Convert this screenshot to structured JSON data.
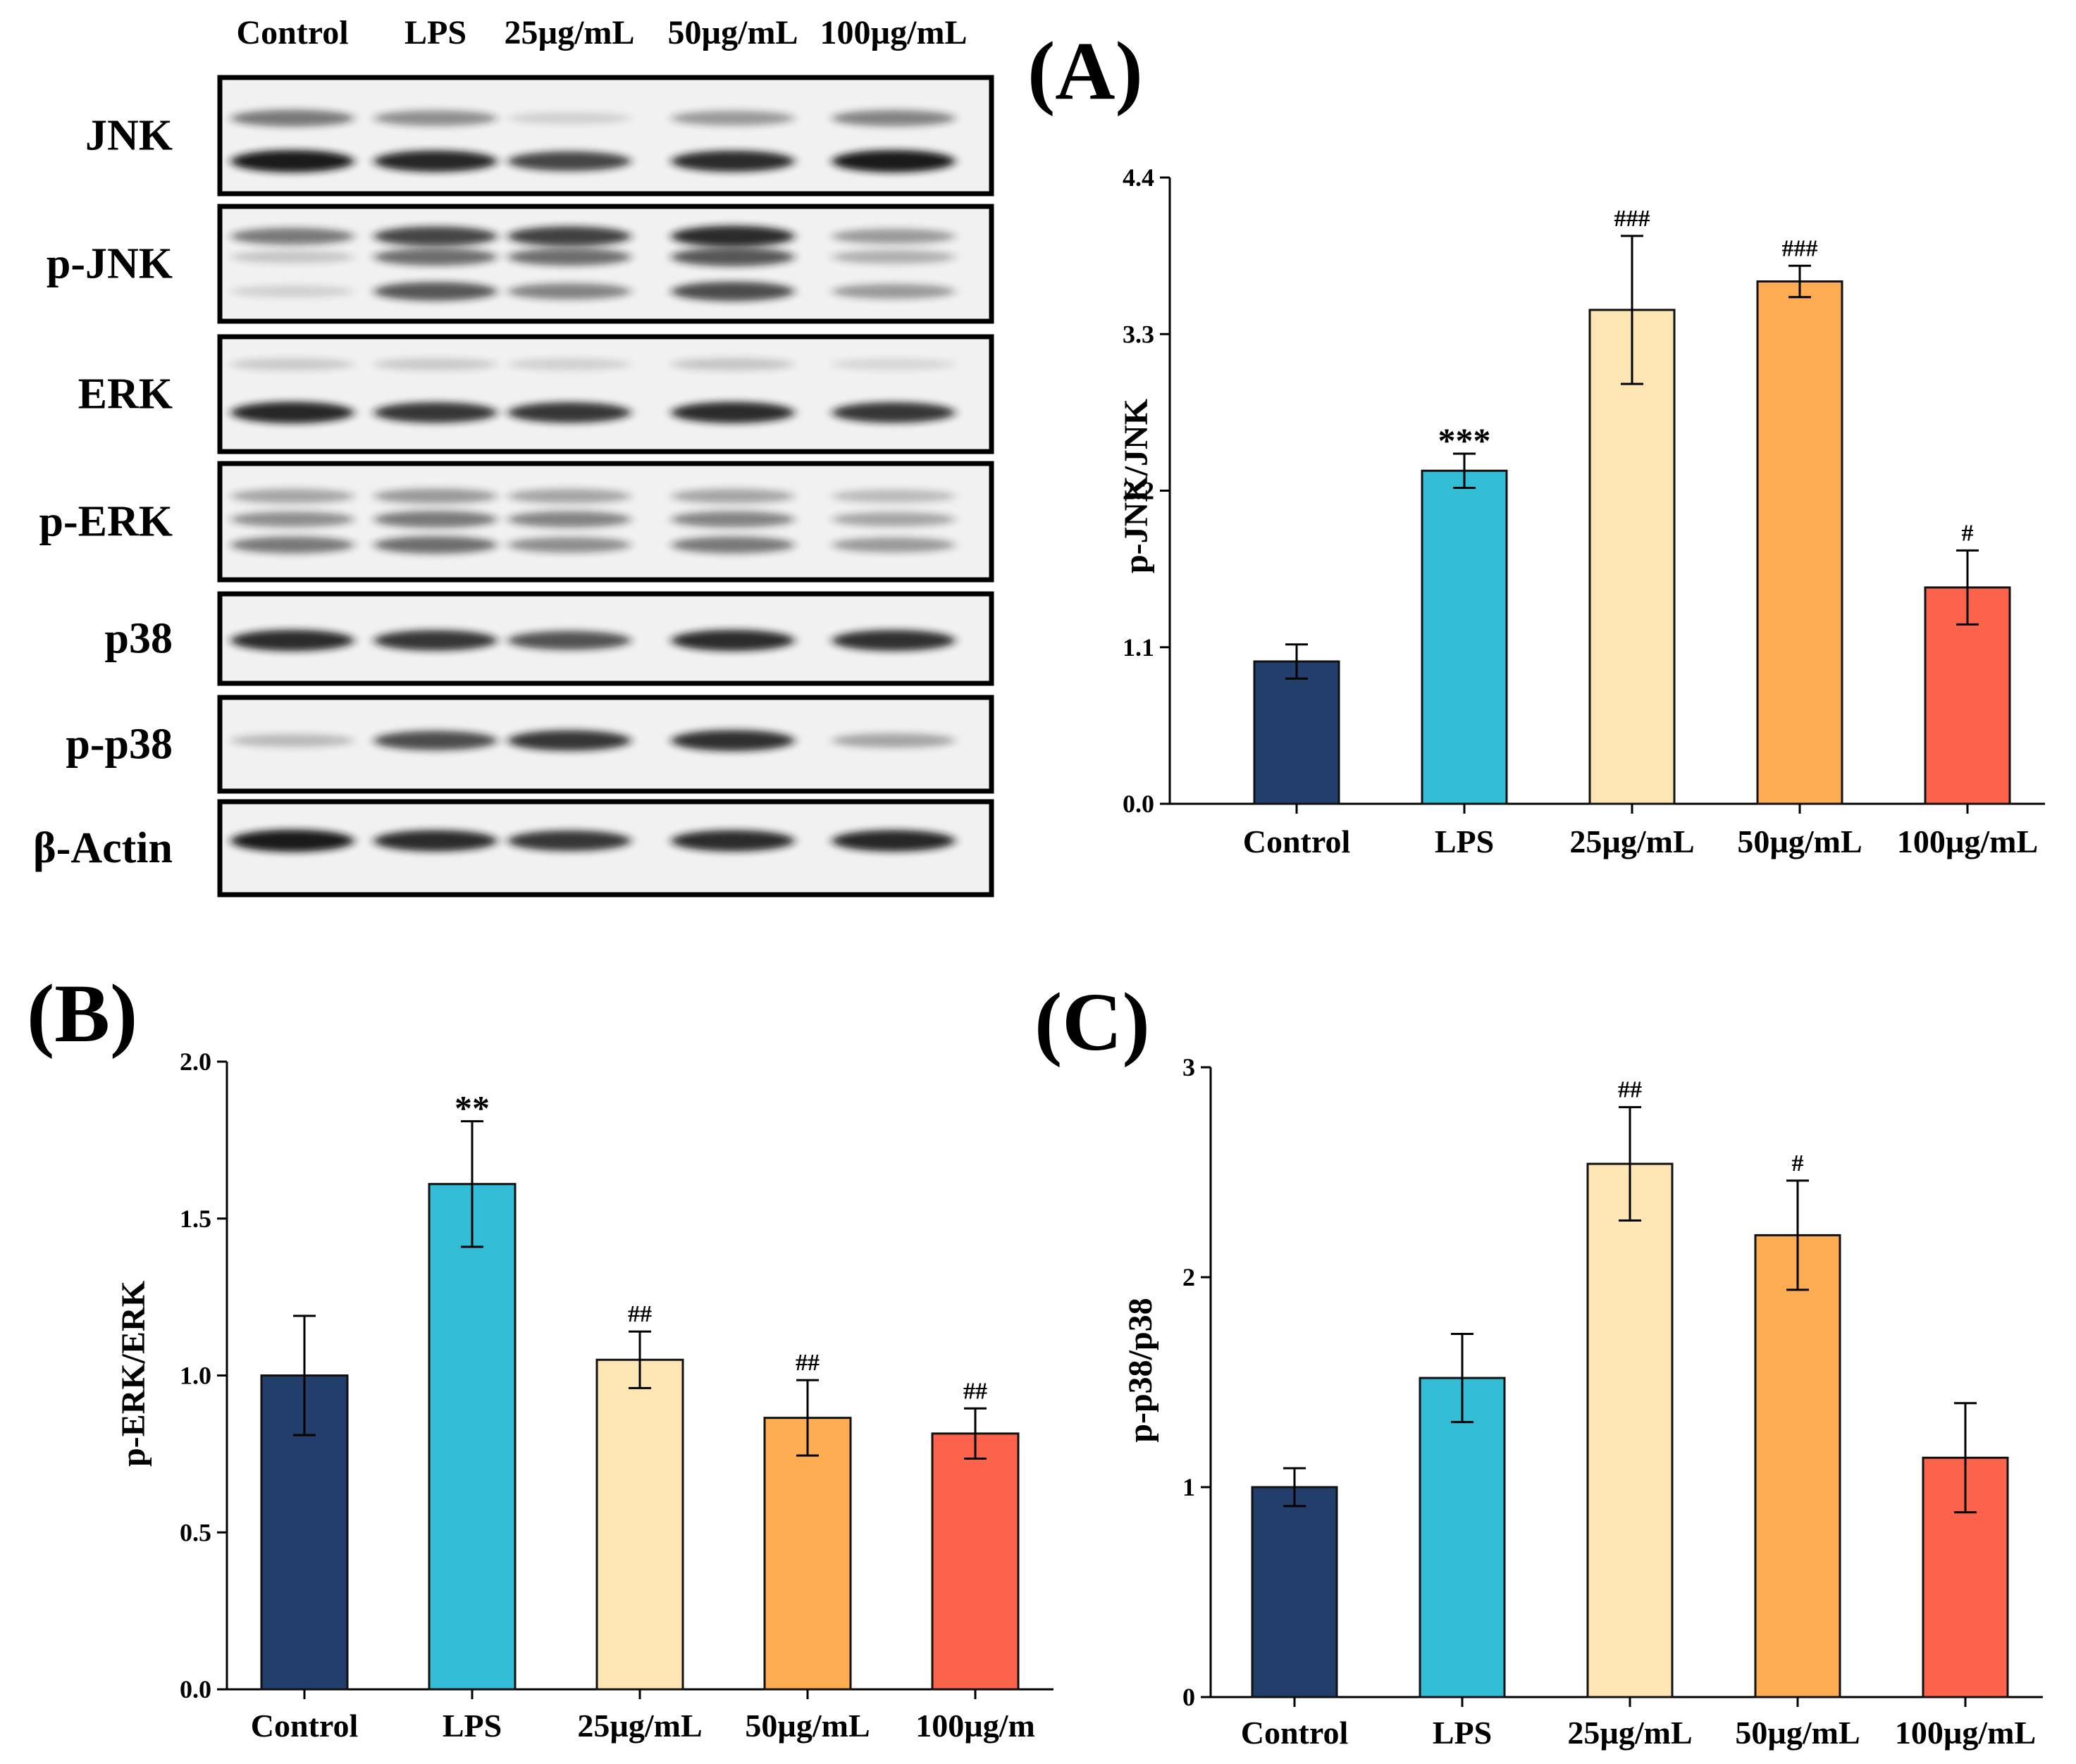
{
  "colors": {
    "bars": [
      "#223e6a",
      "#33bcd6",
      "#fde6b4",
      "#fdac52",
      "#fd634a"
    ],
    "bar_edge": "#111111",
    "blot_bg": "#f1f1f1",
    "blot_band": "#141414"
  },
  "blot": {
    "lane_labels": [
      "Control",
      "LPS",
      "25µg/mL",
      "50µg/mL",
      "100µg/mL"
    ],
    "rows": [
      {
        "label": "JNK",
        "bands": [
          {
            "pos": 0.35,
            "lanes": [
              0.55,
              0.45,
              0.15,
              0.4,
              0.5
            ]
          },
          {
            "pos": 0.72,
            "lanes": [
              0.98,
              0.92,
              0.78,
              0.9,
              0.98
            ]
          }
        ]
      },
      {
        "label": "p-JNK",
        "bands": [
          {
            "pos": 0.26,
            "lanes": [
              0.55,
              0.78,
              0.8,
              0.9,
              0.4
            ]
          },
          {
            "pos": 0.44,
            "lanes": [
              0.2,
              0.6,
              0.6,
              0.7,
              0.3
            ]
          },
          {
            "pos": 0.74,
            "lanes": [
              0.15,
              0.7,
              0.5,
              0.75,
              0.4
            ]
          }
        ]
      },
      {
        "label": "ERK",
        "bands": [
          {
            "pos": 0.24,
            "lanes": [
              0.18,
              0.18,
              0.15,
              0.2,
              0.12
            ]
          },
          {
            "pos": 0.66,
            "lanes": [
              0.92,
              0.85,
              0.85,
              0.9,
              0.85
            ]
          }
        ]
      },
      {
        "label": "p-ERK",
        "bands": [
          {
            "pos": 0.28,
            "lanes": [
              0.35,
              0.4,
              0.35,
              0.35,
              0.25
            ]
          },
          {
            "pos": 0.48,
            "lanes": [
              0.45,
              0.55,
              0.5,
              0.5,
              0.35
            ]
          },
          {
            "pos": 0.7,
            "lanes": [
              0.55,
              0.6,
              0.45,
              0.55,
              0.4
            ]
          }
        ]
      },
      {
        "label": "p38",
        "bands": [
          {
            "pos": 0.52,
            "lanes": [
              0.9,
              0.85,
              0.72,
              0.9,
              0.88
            ]
          }
        ]
      },
      {
        "label": "p-p38",
        "bands": [
          {
            "pos": 0.46,
            "lanes": [
              0.25,
              0.75,
              0.85,
              0.88,
              0.35
            ]
          }
        ]
      },
      {
        "label": "β-Actin",
        "bands": [
          {
            "pos": 0.42,
            "lanes": [
              0.98,
              0.9,
              0.85,
              0.9,
              0.92
            ]
          }
        ]
      }
    ]
  },
  "chart_data": [
    {
      "panel": "(A)",
      "type": "bar",
      "categories": [
        "Control",
        "LPS",
        "25µg/mL",
        "50µg/mL",
        "100µg/mL"
      ],
      "values": [
        1.0,
        2.34,
        3.47,
        3.67,
        1.52
      ],
      "errors": [
        0.12,
        0.12,
        0.52,
        0.11,
        0.26
      ],
      "annotations": [
        "",
        "***",
        "###",
        "###",
        "#"
      ],
      "ylabel": "p-JNK/JNK",
      "ylim": [
        0,
        4.4
      ],
      "yticks": [
        "0.0",
        "1.1",
        "2.2",
        "3.3",
        "4.4"
      ]
    },
    {
      "panel": "(B)",
      "type": "bar",
      "categories": [
        "Control",
        "LPS",
        "25µg/mL",
        "50µg/mL",
        "100µg/m"
      ],
      "values": [
        1.0,
        1.61,
        1.05,
        0.865,
        0.815
      ],
      "errors": [
        0.19,
        0.2,
        0.09,
        0.12,
        0.08
      ],
      "annotations": [
        "",
        "**",
        "##",
        "##",
        "##"
      ],
      "ylabel": "p-ERK/ERK",
      "ylim": [
        0,
        2.0
      ],
      "yticks": [
        "0.0",
        "0.5",
        "1.0",
        "1.5",
        "2.0"
      ]
    },
    {
      "panel": "(C)",
      "type": "bar",
      "categories": [
        "Control",
        "LPS",
        "25µg/mL",
        "50µg/mL",
        "100µg/mL"
      ],
      "values": [
        1.0,
        1.52,
        2.54,
        2.2,
        1.14
      ],
      "errors": [
        0.09,
        0.21,
        0.27,
        0.26,
        0.26
      ],
      "annotations": [
        "",
        "",
        "##",
        "#",
        ""
      ],
      "ylabel": "p-p38/p38",
      "ylim": [
        0,
        3
      ],
      "yticks": [
        "0",
        "1",
        "2",
        "3"
      ]
    }
  ]
}
